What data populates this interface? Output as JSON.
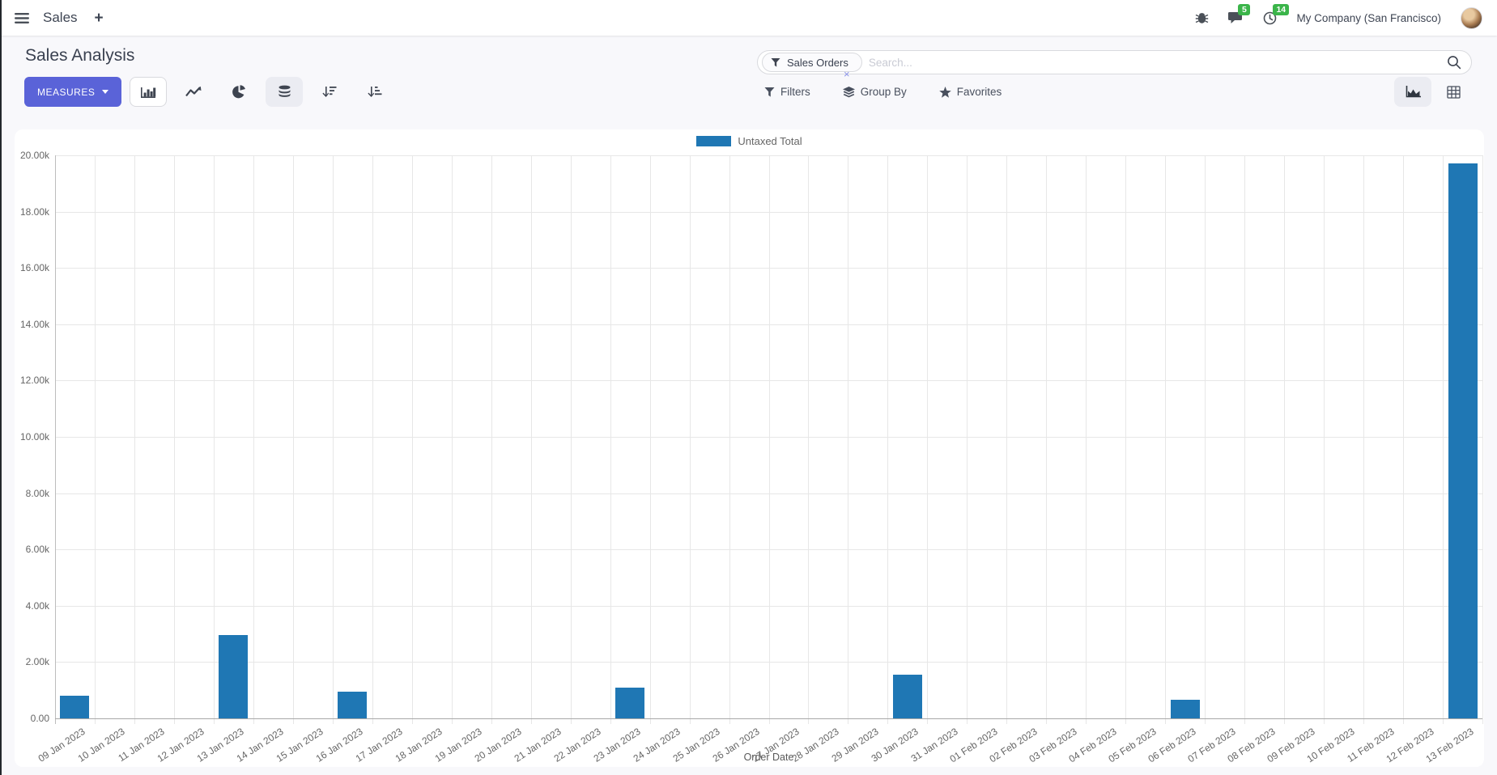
{
  "navbar": {
    "app_title": "Sales",
    "plus_symbol": "+",
    "message_count": "5",
    "activity_count": "14",
    "company": "My Company (San Francisco)"
  },
  "control_panel": {
    "title": "Sales Analysis",
    "measures_label": "MEASURES",
    "filters_label": "Filters",
    "group_by_label": "Group By",
    "favorites_label": "Favorites"
  },
  "search": {
    "facet_label": "Sales Orders",
    "placeholder": "Search...",
    "remove_symbol": "×"
  },
  "chart_data": {
    "type": "bar",
    "title": "",
    "xlabel": "Order Date",
    "ylabel": "",
    "ylim": [
      0,
      20000
    ],
    "y_tick_step": 2000,
    "y_tick_labels": [
      "0.00",
      "2.00k",
      "4.00k",
      "6.00k",
      "8.00k",
      "10.00k",
      "12.00k",
      "14.00k",
      "16.00k",
      "18.00k",
      "20.00k"
    ],
    "grid": true,
    "legend_position": "top",
    "bar_color": "#1f77b4",
    "categories": [
      "09 Jan 2023",
      "10 Jan 2023",
      "11 Jan 2023",
      "12 Jan 2023",
      "13 Jan 2023",
      "14 Jan 2023",
      "15 Jan 2023",
      "16 Jan 2023",
      "17 Jan 2023",
      "18 Jan 2023",
      "19 Jan 2023",
      "20 Jan 2023",
      "21 Jan 2023",
      "22 Jan 2023",
      "23 Jan 2023",
      "24 Jan 2023",
      "25 Jan 2023",
      "26 Jan 2023",
      "27 Jan 2023",
      "28 Jan 2023",
      "29 Jan 2023",
      "30 Jan 2023",
      "31 Jan 2023",
      "01 Feb 2023",
      "02 Feb 2023",
      "03 Feb 2023",
      "04 Feb 2023",
      "05 Feb 2023",
      "06 Feb 2023",
      "07 Feb 2023",
      "08 Feb 2023",
      "09 Feb 2023",
      "10 Feb 2023",
      "11 Feb 2023",
      "12 Feb 2023",
      "13 Feb 2023"
    ],
    "series": [
      {
        "name": "Untaxed Total",
        "values": [
          800,
          0,
          0,
          0,
          2950,
          0,
          0,
          950,
          0,
          0,
          0,
          0,
          0,
          0,
          1080,
          0,
          0,
          0,
          0,
          0,
          0,
          1550,
          0,
          0,
          0,
          0,
          0,
          0,
          650,
          0,
          0,
          0,
          0,
          0,
          0,
          19700
        ]
      }
    ]
  }
}
